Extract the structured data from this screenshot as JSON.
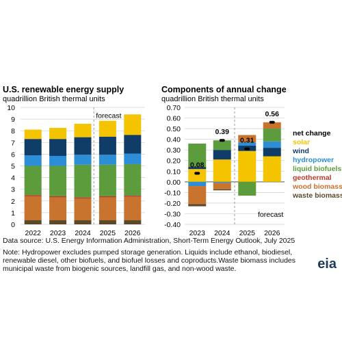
{
  "colors": {
    "solar": "#f5c400",
    "wind": "#0f3d68",
    "hydropower": "#2b8ed6",
    "liquid_biofuels": "#5d9c3c",
    "geothermal": "#c0392b",
    "wood_biomass": "#c8732e",
    "waste_biomass": "#5a4a2a",
    "net_change": "#000000"
  },
  "chart_data": [
    {
      "type": "bar",
      "title": "U.S. renewable energy supply",
      "subtitle": "quadrillion British thermal units",
      "categories": [
        "2022",
        "2023",
        "2024",
        "2025",
        "2026"
      ],
      "ylim": [
        0,
        10
      ],
      "yticks": [
        0,
        1,
        2,
        3,
        4,
        5,
        6,
        7,
        8,
        9,
        10
      ],
      "annotation": "forecast",
      "series": [
        {
          "name": "waste biomass",
          "values": [
            0.35,
            0.35,
            0.35,
            0.35,
            0.35
          ]
        },
        {
          "name": "wood biomass",
          "values": [
            2.05,
            1.95,
            1.85,
            1.95,
            2.0
          ]
        },
        {
          "name": "geothermal",
          "values": [
            0.1,
            0.1,
            0.1,
            0.1,
            0.1
          ]
        },
        {
          "name": "liquid biofuels",
          "values": [
            2.5,
            2.6,
            2.8,
            2.7,
            2.7
          ]
        },
        {
          "name": "hydropower",
          "values": [
            0.9,
            0.85,
            0.85,
            0.85,
            0.9
          ]
        },
        {
          "name": "wind",
          "values": [
            1.4,
            1.45,
            1.5,
            1.55,
            1.6
          ]
        },
        {
          "name": "solar",
          "values": [
            0.8,
            0.95,
            1.15,
            1.35,
            1.75
          ]
        }
      ]
    },
    {
      "type": "bar",
      "title": "Components of annual change",
      "subtitle": "quadrillion British thermal units",
      "categories": [
        "2023",
        "2024",
        "2025",
        "2026"
      ],
      "ylim": [
        -0.4,
        0.7
      ],
      "yticks": [
        0.7,
        0.6,
        0.5,
        0.4,
        0.3,
        0.2,
        0.1,
        0.0,
        -0.1,
        -0.2,
        -0.3,
        -0.4
      ],
      "annotation": "forecast",
      "series": [
        {
          "name": "solar",
          "values": [
            0.12,
            0.21,
            0.29,
            0.24
          ]
        },
        {
          "name": "wind",
          "values": [
            0.02,
            0.09,
            0.05,
            0.08
          ]
        },
        {
          "name": "hydropower",
          "values": [
            -0.04,
            -0.01,
            0.03,
            0.06
          ]
        },
        {
          "name": "liquid biofuels",
          "values": [
            0.22,
            0.09,
            -0.13,
            0.12
          ]
        },
        {
          "name": "geothermal",
          "values": [
            0.0,
            0.0,
            0.0,
            0.0
          ]
        },
        {
          "name": "wood biomass",
          "values": [
            -0.17,
            -0.06,
            0.07,
            0.06
          ]
        },
        {
          "name": "waste biomass",
          "values": [
            -0.02,
            -0.01,
            0.0,
            0.0
          ]
        }
      ],
      "net_change": [
        0.08,
        0.39,
        0.31,
        0.56
      ],
      "net_labels": [
        "0.08",
        "0.39",
        "0.31",
        "0.56"
      ],
      "legend": [
        "net change",
        "solar",
        "wind",
        "hydropower",
        "liquid biofuels",
        "geothermal",
        "wood biomass",
        "waste biomass"
      ]
    }
  ],
  "footer": {
    "source": "Data source: U.S. Energy Information Administration, Short-Term Energy Outlook, July 2025",
    "note1": "Note: Hydropower excludes pumped storage generation. Liquids include ethanol, biodiesel,",
    "note2": "renewable diesel, other biofuels, and biofuel losses and coproducts.Waste biomass includes",
    "note3": "municipal waste from biogenic sources, landfill gas, and non-wood waste."
  },
  "logo": "eia"
}
